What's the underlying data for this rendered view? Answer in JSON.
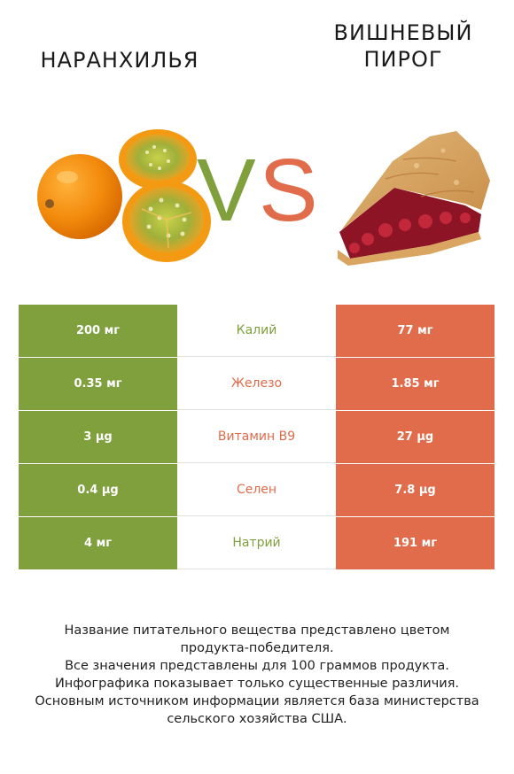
{
  "header": {
    "left_food": "НАРАНХИЛЬЯ",
    "right_food_line1": "ВИШНЕВЫЙ",
    "right_food_line2": "ПИРОГ",
    "vs_v": "V",
    "vs_s": "S"
  },
  "colors": {
    "left_accent": "#7fa03c",
    "right_accent": "#e06c4c"
  },
  "images": {
    "left": "naranjilla-fruit-image",
    "right": "cherry-pie-slice-image"
  },
  "table": {
    "rows": [
      {
        "left": "200 мг",
        "nutrient": "Калий",
        "right": "77 мг",
        "winner": "left",
        "winner_color": "#7fa03c"
      },
      {
        "left": "0.35 мг",
        "nutrient": "Железо",
        "right": "1.85 мг",
        "winner": "right",
        "winner_color": "#e06c4c"
      },
      {
        "left": "3 µg",
        "nutrient": "Витамин B9",
        "right": "27 µg",
        "winner": "right",
        "winner_color": "#e06c4c"
      },
      {
        "left": "0.4 µg",
        "nutrient": "Селен",
        "right": "7.8 µg",
        "winner": "right",
        "winner_color": "#e06c4c"
      },
      {
        "left": "4 мг",
        "nutrient": "Натрий",
        "right": "191 мг",
        "winner": "left",
        "winner_color": "#7fa03c"
      }
    ]
  },
  "footer": {
    "line1": "Название питательного вещества представлено цветом",
    "line2": "продукта-победителя.",
    "line3": "Все значения представлены для 100 граммов продукта.",
    "line4": "Инфографика показывает только существенные различия.",
    "line5": "Основным источником информации является база министерства",
    "line6": "сельского хозяйства США."
  }
}
